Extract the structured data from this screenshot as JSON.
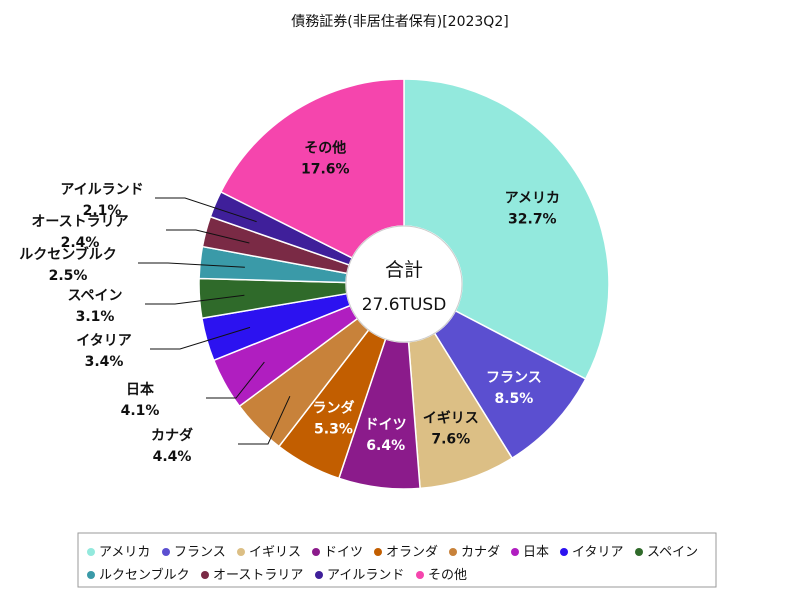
{
  "chart_data": {
    "type": "pie",
    "variant": "donut",
    "title": "債務証券(非居住者保有)[2023Q2]",
    "center": {
      "title": "合計",
      "value": "27.6TUSD"
    },
    "unit": "%",
    "legend_position": "bottom",
    "slices": [
      {
        "label": "アメリカ",
        "value": 32.7,
        "value_label": "32.7%",
        "color": "#93e9dd",
        "label_color": "#111111",
        "label_inside": true
      },
      {
        "label": "フランス",
        "value": 8.5,
        "value_label": "8.5%",
        "color": "#5b4fd0",
        "label_color": "#ffffff",
        "label_inside": true
      },
      {
        "label": "イギリス",
        "value": 7.6,
        "value_label": "7.6%",
        "color": "#dcbf85",
        "label_color": "#111111",
        "label_inside": true
      },
      {
        "label": "ドイツ",
        "value": 6.4,
        "value_label": "6.4%",
        "color": "#8b1b8b",
        "label_color": "#ffffff",
        "label_inside": true
      },
      {
        "label": "オランダ",
        "value": 5.3,
        "value_label": "5.3%",
        "color": "#c25e00",
        "label_color": "#ffffff",
        "label_inside": true,
        "display_text": "ランダ"
      },
      {
        "label": "カナダ",
        "value": 4.4,
        "value_label": "4.4%",
        "color": "#c8823a",
        "label_inside": false
      },
      {
        "label": "日本",
        "value": 4.1,
        "value_label": "4.1%",
        "color": "#b01ec0",
        "label_inside": false
      },
      {
        "label": "イタリア",
        "value": 3.4,
        "value_label": "3.4%",
        "color": "#2c12f0",
        "label_inside": false
      },
      {
        "label": "スペイン",
        "value": 3.1,
        "value_label": "3.1%",
        "color": "#2f6a2a",
        "label_inside": false
      },
      {
        "label": "ルクセンブルク",
        "value": 2.5,
        "value_label": "2.5%",
        "color": "#3a9aa8",
        "label_inside": false
      },
      {
        "label": "オーストラリア",
        "value": 2.4,
        "value_label": "2.4%",
        "color": "#7a2a45",
        "label_inside": false
      },
      {
        "label": "アイルランド",
        "value": 2.1,
        "value_label": "2.1%",
        "color": "#3f1f9a",
        "label_inside": false
      },
      {
        "label": "その他",
        "value": 17.6,
        "value_label": "17.6%",
        "color": "#f545ad",
        "label_color": "#111111",
        "label_inside": true
      }
    ]
  }
}
